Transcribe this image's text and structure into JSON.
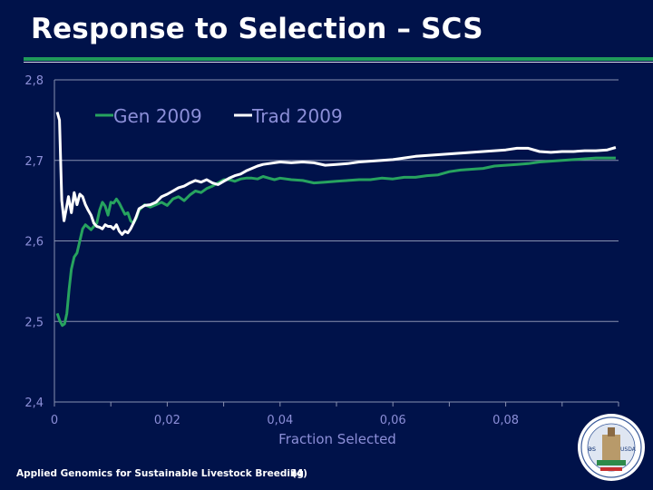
{
  "title": "Response to Selection – SCS",
  "footer": "Applied Genomics for Sustainable Livestock Breeding",
  "page_number": "(4)",
  "page_number_overlap": "24",
  "logo": {
    "text_left": "ǝs",
    "text_right": "USDA"
  },
  "colors": {
    "background": "#00124a",
    "accent_green": "#1f9a5a",
    "series_gen": "#27a35f",
    "series_trad": "#ffffff",
    "axis_text": "#8c8fd8",
    "grid": "#8890b0"
  },
  "chart_data": {
    "type": "line",
    "title": "",
    "xlabel": "Fraction Selected",
    "ylabel": "",
    "xlim": [
      0,
      0.1
    ],
    "ylim": [
      2.4,
      2.8
    ],
    "x_ticks": [
      "0",
      "0,02",
      "0,04",
      "0,06",
      "0,08"
    ],
    "x_tick_values": [
      0,
      0.02,
      0.04,
      0.06,
      0.08
    ],
    "y_ticks": [
      "2,8",
      "2,7",
      "2,6",
      "2,5",
      "2,4"
    ],
    "y_tick_values": [
      2.8,
      2.7,
      2.6,
      2.5,
      2.4
    ],
    "grid": "horizontal",
    "legend": "top-left",
    "series": [
      {
        "name": "Gen 2009",
        "x": [
          0.0005,
          0.001,
          0.0014,
          0.0018,
          0.0022,
          0.0026,
          0.003,
          0.0035,
          0.004,
          0.0045,
          0.005,
          0.0055,
          0.006,
          0.0065,
          0.007,
          0.0075,
          0.008,
          0.0085,
          0.009,
          0.0095,
          0.01,
          0.0105,
          0.011,
          0.0115,
          0.012,
          0.0125,
          0.013,
          0.0135,
          0.014,
          0.0145,
          0.015,
          0.016,
          0.017,
          0.018,
          0.019,
          0.02,
          0.021,
          0.022,
          0.023,
          0.024,
          0.025,
          0.026,
          0.027,
          0.028,
          0.029,
          0.03,
          0.031,
          0.032,
          0.033,
          0.034,
          0.035,
          0.036,
          0.037,
          0.038,
          0.039,
          0.04,
          0.042,
          0.044,
          0.046,
          0.048,
          0.05,
          0.052,
          0.054,
          0.056,
          0.058,
          0.06,
          0.062,
          0.064,
          0.066,
          0.068,
          0.07,
          0.072,
          0.074,
          0.076,
          0.078,
          0.08,
          0.082,
          0.084,
          0.086,
          0.088,
          0.09,
          0.092,
          0.094,
          0.096,
          0.098,
          0.0995
        ],
        "values": [
          2.51,
          2.5,
          2.495,
          2.497,
          2.51,
          2.54,
          2.565,
          2.58,
          2.585,
          2.6,
          2.615,
          2.62,
          2.617,
          2.614,
          2.618,
          2.622,
          2.638,
          2.648,
          2.643,
          2.632,
          2.648,
          2.647,
          2.652,
          2.647,
          2.64,
          2.633,
          2.635,
          2.625,
          2.622,
          2.628,
          2.638,
          2.645,
          2.642,
          2.645,
          2.648,
          2.644,
          2.652,
          2.655,
          2.65,
          2.657,
          2.662,
          2.66,
          2.665,
          2.668,
          2.672,
          2.676,
          2.676,
          2.674,
          2.677,
          2.678,
          2.678,
          2.677,
          2.68,
          2.678,
          2.676,
          2.678,
          2.676,
          2.675,
          2.672,
          2.673,
          2.674,
          2.675,
          2.676,
          2.676,
          2.678,
          2.677,
          2.679,
          2.679,
          2.681,
          2.682,
          2.686,
          2.688,
          2.689,
          2.69,
          2.693,
          2.694,
          2.695,
          2.696,
          2.698,
          2.699,
          2.7,
          2.701,
          2.702,
          2.703,
          2.703,
          2.703
        ]
      },
      {
        "name": "Trad 2009",
        "x": [
          0.0005,
          0.0009,
          0.0013,
          0.0017,
          0.0021,
          0.0025,
          0.003,
          0.0035,
          0.004,
          0.0045,
          0.005,
          0.0055,
          0.006,
          0.0065,
          0.007,
          0.0075,
          0.008,
          0.0085,
          0.009,
          0.0095,
          0.01,
          0.0105,
          0.011,
          0.0115,
          0.012,
          0.0125,
          0.013,
          0.0135,
          0.014,
          0.0145,
          0.015,
          0.016,
          0.017,
          0.018,
          0.019,
          0.02,
          0.021,
          0.022,
          0.023,
          0.024,
          0.025,
          0.026,
          0.027,
          0.028,
          0.029,
          0.03,
          0.031,
          0.032,
          0.033,
          0.034,
          0.035,
          0.036,
          0.037,
          0.038,
          0.039,
          0.04,
          0.042,
          0.044,
          0.046,
          0.048,
          0.05,
          0.052,
          0.054,
          0.056,
          0.058,
          0.06,
          0.062,
          0.064,
          0.066,
          0.068,
          0.07,
          0.072,
          0.074,
          0.076,
          0.078,
          0.08,
          0.082,
          0.084,
          0.086,
          0.088,
          0.09,
          0.092,
          0.094,
          0.096,
          0.098,
          0.0995
        ],
        "values": [
          2.76,
          2.75,
          2.65,
          2.625,
          2.64,
          2.655,
          2.635,
          2.66,
          2.645,
          2.658,
          2.655,
          2.645,
          2.638,
          2.632,
          2.622,
          2.618,
          2.617,
          2.615,
          2.62,
          2.618,
          2.618,
          2.615,
          2.62,
          2.612,
          2.608,
          2.612,
          2.61,
          2.615,
          2.622,
          2.63,
          2.64,
          2.644,
          2.645,
          2.648,
          2.655,
          2.658,
          2.662,
          2.666,
          2.668,
          2.672,
          2.675,
          2.673,
          2.676,
          2.672,
          2.67,
          2.674,
          2.678,
          2.681,
          2.683,
          2.687,
          2.69,
          2.693,
          2.695,
          2.696,
          2.697,
          2.698,
          2.697,
          2.698,
          2.697,
          2.694,
          2.695,
          2.696,
          2.698,
          2.699,
          2.7,
          2.701,
          2.703,
          2.705,
          2.706,
          2.707,
          2.708,
          2.709,
          2.71,
          2.711,
          2.712,
          2.713,
          2.715,
          2.715,
          2.711,
          2.71,
          2.711,
          2.711,
          2.712,
          2.712,
          2.713,
          2.716
        ]
      }
    ]
  }
}
